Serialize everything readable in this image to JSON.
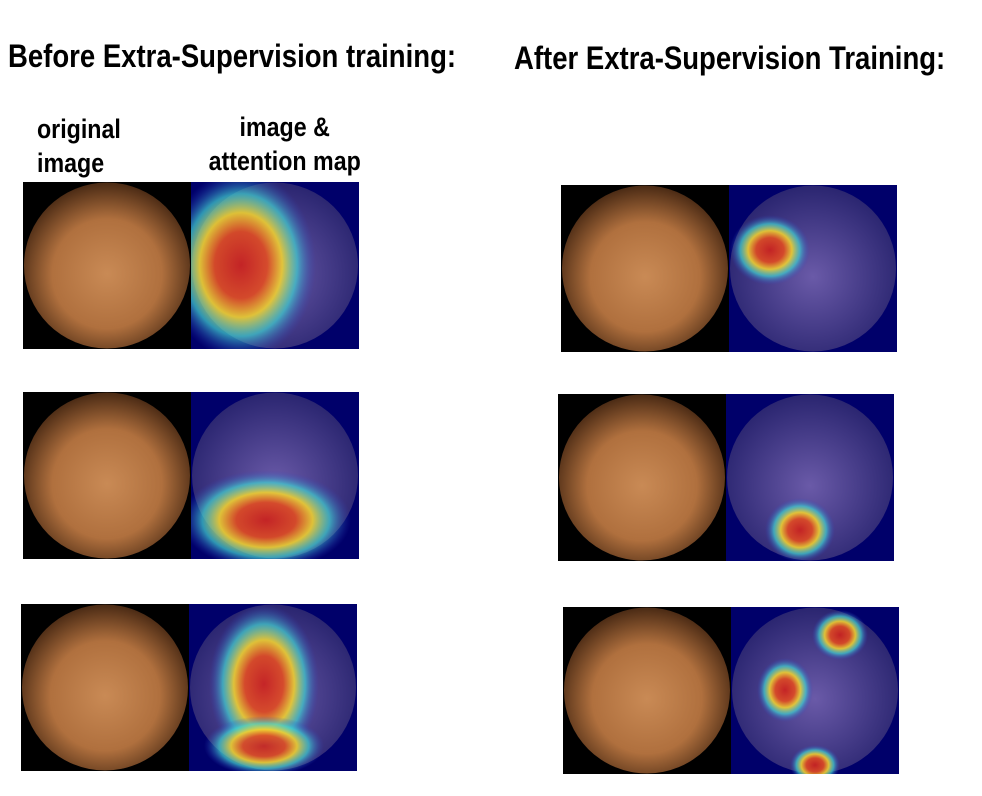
{
  "titles": {
    "before": "Before Extra-Supervision training:",
    "after": "After Extra-Supervision Training:"
  },
  "column_labels": {
    "original": "original image",
    "overlay": "image & attention map"
  }
}
